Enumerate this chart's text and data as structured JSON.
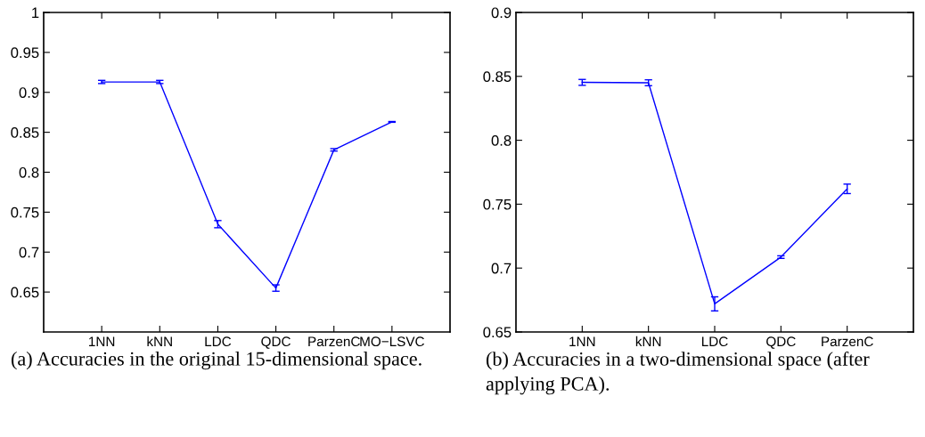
{
  "chart_data": [
    {
      "type": "line",
      "categories": [
        "1NN",
        "kNN",
        "LDC",
        "QDC",
        "ParzenC",
        "MO−LSVC"
      ],
      "values": [
        0.913,
        0.913,
        0.735,
        0.655,
        0.828,
        0.863
      ],
      "errors": [
        0.002,
        0.002,
        0.0045,
        0.004,
        0.0015,
        0.0005
      ],
      "color": "#0000ff",
      "ylim": [
        0.6,
        1
      ],
      "yticks": [
        0.65,
        0.7,
        0.75,
        0.8,
        0.85,
        0.9,
        0.95,
        1
      ],
      "grid": false,
      "marker": "none",
      "line_style": "solid",
      "annotations": [
        "(a) Accuracies in the original 15-dimensional space."
      ]
    },
    {
      "type": "line",
      "categories": [
        "1NN",
        "kNN",
        "LDC",
        "QDC",
        "ParzenC"
      ],
      "values": [
        0.8453,
        0.845,
        0.672,
        0.7086,
        0.762
      ],
      "errors": [
        0.0023,
        0.0023,
        0.0055,
        0.001,
        0.0037
      ],
      "color": "#0000ff",
      "ylim": [
        0.65,
        0.9
      ],
      "yticks": [
        0.65,
        0.7,
        0.75,
        0.8,
        0.85,
        0.9
      ],
      "grid": false,
      "marker": "none",
      "line_style": "solid",
      "annotations": [
        "(b) Accuracies in a two-dimensional space (after applying PCA)."
      ]
    }
  ]
}
